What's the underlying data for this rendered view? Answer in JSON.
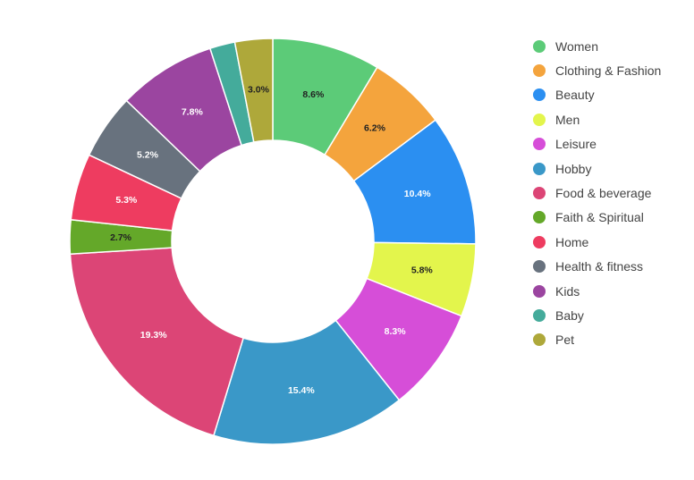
{
  "chart_data": {
    "type": "pie",
    "donut": true,
    "legend_position": "right",
    "slices": [
      {
        "label": "Women",
        "value": 8.6,
        "display": "8.6%",
        "color": "#5ccb78",
        "label_color": "#222222"
      },
      {
        "label": "Clothing & Fashion",
        "value": 6.2,
        "display": "6.2%",
        "color": "#f4a43d",
        "label_color": "#222222"
      },
      {
        "label": "Beauty",
        "value": 10.4,
        "display": "10.4%",
        "color": "#2b8ff1",
        "label_color": "#ffffff"
      },
      {
        "label": "Men",
        "value": 5.8,
        "display": "5.8%",
        "color": "#e3f54c",
        "label_color": "#222222"
      },
      {
        "label": "Leisure",
        "value": 8.3,
        "display": "8.3%",
        "color": "#d64ed8",
        "label_color": "#ffffff"
      },
      {
        "label": "Hobby",
        "value": 15.4,
        "display": "15.4%",
        "color": "#3a98c8",
        "label_color": "#ffffff"
      },
      {
        "label": "Food & beverage",
        "value": 19.3,
        "display": "19.3%",
        "color": "#dc4576",
        "label_color": "#ffffff"
      },
      {
        "label": "Faith & Spiritual",
        "value": 2.7,
        "display": "2.7%",
        "color": "#64a829",
        "label_color": "#222222"
      },
      {
        "label": "Home",
        "value": 5.3,
        "display": "5.3%",
        "color": "#ee3c60",
        "label_color": "#ffffff"
      },
      {
        "label": "Health & fitness",
        "value": 5.2,
        "display": "5.2%",
        "color": "#68727e",
        "label_color": "#ffffff"
      },
      {
        "label": "Kids",
        "value": 7.8,
        "display": "7.8%",
        "color": "#9b45a0",
        "label_color": "#ffffff"
      },
      {
        "label": "Baby",
        "value": 2.0,
        "display": "",
        "color": "#44ab9b",
        "label_color": "#ffffff"
      },
      {
        "label": "Pet",
        "value": 3.0,
        "display": "3.0%",
        "color": "#aea83a",
        "label_color": "#222222"
      }
    ]
  }
}
